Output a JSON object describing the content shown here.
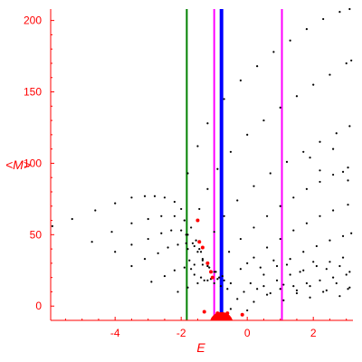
{
  "chart_data": {
    "type": "scatter",
    "title": "",
    "xlabel": "E",
    "ylabel": "<M>",
    "xlim": [
      -5.95,
      3.2
    ],
    "ylim": [
      -10,
      208
    ],
    "xticks": [
      {
        "value": -4,
        "label": "-4"
      },
      {
        "value": -2,
        "label": "-2"
      },
      {
        "value": 0,
        "label": "0"
      },
      {
        "value": 2,
        "label": "2"
      }
    ],
    "yticks": [
      {
        "value": 0,
        "label": "0"
      },
      {
        "value": 50,
        "label": "50"
      },
      {
        "value": 100,
        "label": "100"
      },
      {
        "value": 150,
        "label": "150"
      },
      {
        "value": 200,
        "label": "200"
      }
    ],
    "grid": false,
    "colors": {
      "axis": "#ff0000",
      "points": "#000000",
      "highlight_points": "#ff0000",
      "line_green": "#008000",
      "line_magenta": "#ff00ff",
      "line_blue": "#0000ff"
    },
    "vertical_lines": [
      {
        "x": -1.83,
        "color": "#008000",
        "style": "thin"
      },
      {
        "x": -1.0,
        "color": "#ff00ff",
        "style": "thin"
      },
      {
        "x": -0.78,
        "color": "#0000ff",
        "style": "thick"
      },
      {
        "x": 1.05,
        "color": "#ff00ff",
        "style": "thin"
      }
    ],
    "series": [
      {
        "values": [
          [
            -5.9,
            56
          ],
          [
            -5.3,
            61
          ],
          [
            -4.6,
            67
          ],
          [
            -4.0,
            72
          ],
          [
            -3.5,
            76
          ],
          [
            -3.1,
            77
          ],
          [
            -2.8,
            77
          ],
          [
            -2.5,
            76
          ],
          [
            -2.2,
            73
          ],
          [
            -2.0,
            68
          ],
          [
            -1.9,
            60
          ],
          [
            -1.85,
            50
          ],
          [
            -1.8,
            40
          ],
          [
            -1.75,
            32
          ],
          [
            -1.7,
            26
          ],
          [
            -1.6,
            22
          ],
          [
            -1.4,
            20
          ],
          [
            -1.2,
            18
          ],
          [
            -1.0,
            16
          ],
          [
            -0.8,
            14
          ],
          [
            -0.6,
            12
          ],
          [
            -4.7,
            45
          ],
          [
            -4.1,
            52
          ],
          [
            -3.5,
            58
          ],
          [
            -3.0,
            61
          ],
          [
            -2.6,
            63
          ],
          [
            -2.2,
            63
          ],
          [
            -1.9,
            60
          ],
          [
            -1.7,
            55
          ],
          [
            -1.55,
            46
          ],
          [
            -1.45,
            40
          ],
          [
            -1.35,
            33
          ],
          [
            -1.2,
            28
          ],
          [
            -1.0,
            24
          ],
          [
            -0.85,
            20
          ],
          [
            -4.0,
            38
          ],
          [
            -3.5,
            43
          ],
          [
            -3.0,
            47
          ],
          [
            -2.6,
            51
          ],
          [
            -2.3,
            53
          ],
          [
            -2.0,
            53
          ],
          [
            -1.8,
            50
          ],
          [
            -1.65,
            44
          ],
          [
            -1.5,
            38
          ],
          [
            -1.35,
            32
          ],
          [
            -1.2,
            28
          ],
          [
            -3.5,
            28
          ],
          [
            -3.1,
            33
          ],
          [
            -2.7,
            37
          ],
          [
            -2.4,
            41
          ],
          [
            -2.1,
            43
          ],
          [
            -1.85,
            44
          ],
          [
            -1.6,
            42
          ],
          [
            -1.4,
            38
          ],
          [
            -2.9,
            17
          ],
          [
            -2.5,
            21
          ],
          [
            -2.2,
            25
          ],
          [
            -1.9,
            27
          ],
          [
            -1.6,
            29
          ],
          [
            -1.35,
            29
          ],
          [
            -1.15,
            27
          ],
          [
            -0.95,
            24
          ],
          [
            -0.75,
            21
          ],
          [
            -2.1,
            10
          ],
          [
            -1.8,
            13
          ],
          [
            -1.5,
            16
          ],
          [
            -1.3,
            18
          ],
          [
            -1.1,
            19
          ],
          [
            -0.9,
            19
          ],
          [
            -0.7,
            18
          ],
          [
            -0.5,
            16
          ],
          [
            -1.8,
            93
          ],
          [
            -1.5,
            112
          ],
          [
            -1.2,
            128
          ],
          [
            -0.7,
            145
          ],
          [
            -0.2,
            158
          ],
          [
            0.3,
            168
          ],
          [
            0.8,
            178
          ],
          [
            1.3,
            186
          ],
          [
            1.8,
            194
          ],
          [
            2.3,
            201
          ],
          [
            2.8,
            206
          ],
          [
            3.1,
            208
          ],
          [
            -1.45,
            68
          ],
          [
            -1.2,
            82
          ],
          [
            -0.9,
            96
          ],
          [
            -0.5,
            108
          ],
          [
            0.0,
            120
          ],
          [
            0.5,
            130
          ],
          [
            1.0,
            139
          ],
          [
            1.5,
            147
          ],
          [
            2.0,
            155
          ],
          [
            2.5,
            162
          ],
          [
            3.0,
            170
          ],
          [
            3.15,
            172
          ],
          [
            -1.0,
            52
          ],
          [
            -0.7,
            63
          ],
          [
            -0.3,
            74
          ],
          [
            0.2,
            84
          ],
          [
            0.7,
            93
          ],
          [
            1.2,
            101
          ],
          [
            1.7,
            108
          ],
          [
            2.2,
            115
          ],
          [
            2.7,
            121
          ],
          [
            3.1,
            126
          ],
          [
            -0.55,
            38
          ],
          [
            -0.2,
            47
          ],
          [
            0.2,
            55
          ],
          [
            0.6,
            63
          ],
          [
            1.0,
            70
          ],
          [
            1.4,
            76
          ],
          [
            1.8,
            82
          ],
          [
            2.2,
            87
          ],
          [
            2.6,
            92
          ],
          [
            3.05,
            97
          ],
          [
            -0.2,
            26
          ],
          [
            0.2,
            34
          ],
          [
            0.6,
            41
          ],
          [
            1.0,
            47
          ],
          [
            1.4,
            53
          ],
          [
            1.8,
            58
          ],
          [
            2.2,
            63
          ],
          [
            2.6,
            67
          ],
          [
            3.05,
            71
          ],
          [
            0.1,
            16
          ],
          [
            0.5,
            22
          ],
          [
            0.9,
            28
          ],
          [
            1.3,
            33
          ],
          [
            1.7,
            38
          ],
          [
            2.1,
            42
          ],
          [
            2.5,
            46
          ],
          [
            2.9,
            49
          ],
          [
            3.15,
            51
          ],
          [
            0.5,
            14
          ],
          [
            0.9,
            18
          ],
          [
            1.3,
            22
          ],
          [
            1.7,
            25
          ],
          [
            2.1,
            28
          ],
          [
            2.5,
            31
          ],
          [
            2.9,
            34
          ],
          [
            1.0,
            12
          ],
          [
            1.4,
            14
          ],
          [
            1.8,
            16
          ],
          [
            2.2,
            18
          ],
          [
            2.6,
            20
          ],
          [
            3.0,
            22
          ],
          [
            -0.3,
            5
          ],
          [
            0.2,
            3
          ],
          [
            0.6,
            8
          ],
          [
            1.1,
            4
          ],
          [
            1.5,
            9
          ],
          [
            1.9,
            6
          ],
          [
            2.4,
            11
          ],
          [
            2.8,
            7
          ],
          [
            3.1,
            13
          ],
          [
            0.0,
            30
          ],
          [
            0.4,
            27
          ],
          [
            0.8,
            32
          ],
          [
            1.2,
            29
          ],
          [
            1.6,
            24
          ],
          [
            2.0,
            31
          ],
          [
            2.4,
            26
          ],
          [
            2.8,
            28
          ],
          [
            3.1,
            24
          ],
          [
            -0.1,
            10
          ],
          [
            0.3,
            12
          ],
          [
            0.7,
            9
          ],
          [
            1.1,
            15
          ],
          [
            1.5,
            11
          ],
          [
            1.9,
            14
          ],
          [
            2.3,
            10
          ],
          [
            2.7,
            16
          ],
          [
            3.05,
            12
          ],
          [
            2.9,
            94
          ],
          [
            3.05,
            88
          ],
          [
            2.6,
            110
          ],
          [
            2.2,
            95
          ],
          [
            1.9,
            104
          ],
          [
            0.0,
            -3
          ],
          [
            -0.5,
            -2
          ]
        ]
      },
      {
        "values": [
          [
            -1.35,
            41
          ],
          [
            -1.45,
            45
          ],
          [
            -1.5,
            60
          ],
          [
            -1.2,
            30
          ],
          [
            -1.1,
            24
          ],
          [
            -1.05,
            20
          ],
          [
            -1.3,
            -4
          ],
          [
            -0.15,
            -6
          ],
          [
            -0.9,
            -5
          ],
          [
            -0.7,
            -6
          ],
          [
            -0.6,
            -5
          ]
        ]
      }
    ]
  }
}
